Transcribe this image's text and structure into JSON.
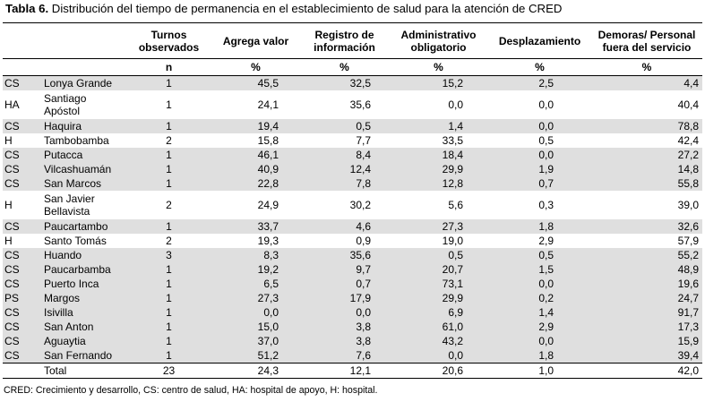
{
  "title": {
    "label": "Tabla 6.",
    "text": " Distribución del tiempo de permanencia en el establecimiento de salud para la atención de CRED"
  },
  "headers": {
    "col_turnos_1": "Turnos",
    "col_turnos_2": "observados",
    "col_agrega": "Agrega valor",
    "col_registro_1": "Registro de",
    "col_registro_2": "información",
    "col_admin_1": "Administrativo",
    "col_admin_2": "obligatorio",
    "col_despl": "Desplazamiento",
    "col_demoras_1": "Demoras/ Personal",
    "col_demoras_2": "fuera del servicio"
  },
  "units": {
    "turnos": "n",
    "agrega": "%",
    "registro": "%",
    "admin": "%",
    "despl": "%",
    "demoras": "%"
  },
  "rows": [
    {
      "type": "CS",
      "name1": "Lonya Grande",
      "name2": "",
      "n": "1",
      "agrega": "45,5",
      "registro": "32,5",
      "admin": "15,2",
      "despl": "2,5",
      "demoras": "4,4"
    },
    {
      "type": "HA",
      "name1": "Santiago",
      "name2": "Apóstol",
      "n": "1",
      "agrega": "24,1",
      "registro": "35,6",
      "admin": "0,0",
      "despl": "0,0",
      "demoras": "40,4"
    },
    {
      "type": "CS",
      "name1": "Haquira",
      "name2": "",
      "n": "1",
      "agrega": "19,4",
      "registro": "0,5",
      "admin": "1,4",
      "despl": "0,0",
      "demoras": "78,8"
    },
    {
      "type": "H",
      "name1": "Tambobamba",
      "name2": "",
      "n": "2",
      "agrega": "15,8",
      "registro": "7,7",
      "admin": "33,5",
      "despl": "0,5",
      "demoras": "42,4"
    },
    {
      "type": "CS",
      "name1": "Putacca",
      "name2": "",
      "n": "1",
      "agrega": "46,1",
      "registro": "8,4",
      "admin": "18,4",
      "despl": "0,0",
      "demoras": "27,2"
    },
    {
      "type": "CS",
      "name1": "Vilcashuamán",
      "name2": "",
      "n": "1",
      "agrega": "40,9",
      "registro": "12,4",
      "admin": "29,9",
      "despl": "1,9",
      "demoras": "14,8"
    },
    {
      "type": "CS",
      "name1": "San Marcos",
      "name2": "",
      "n": "1",
      "agrega": "22,8",
      "registro": "7,8",
      "admin": "12,8",
      "despl": "0,7",
      "demoras": "55,8"
    },
    {
      "type": "H",
      "name1": "San Javier",
      "name2": "Bellavista",
      "n": "2",
      "agrega": "24,9",
      "registro": "30,2",
      "admin": "5,6",
      "despl": "0,3",
      "demoras": "39,0"
    },
    {
      "type": "CS",
      "name1": "Paucartambo",
      "name2": "",
      "n": "1",
      "agrega": "33,7",
      "registro": "4,6",
      "admin": "27,3",
      "despl": "1,8",
      "demoras": "32,6"
    },
    {
      "type": "H",
      "name1": "Santo Tomás",
      "name2": "",
      "n": "2",
      "agrega": "19,3",
      "registro": "0,9",
      "admin": "19,0",
      "despl": "2,9",
      "demoras": "57,9"
    },
    {
      "type": "CS",
      "name1": "Huando",
      "name2": "",
      "n": "3",
      "agrega": "8,3",
      "registro": "35,6",
      "admin": "0,5",
      "despl": "0,5",
      "demoras": "55,2"
    },
    {
      "type": "CS",
      "name1": "Paucarbamba",
      "name2": "",
      "n": "1",
      "agrega": "19,2",
      "registro": "9,7",
      "admin": "20,7",
      "despl": "1,5",
      "demoras": "48,9"
    },
    {
      "type": "CS",
      "name1": "Puerto Inca",
      "name2": "",
      "n": "1",
      "agrega": "6,5",
      "registro": "0,7",
      "admin": "73,1",
      "despl": "0,0",
      "demoras": "19,6"
    },
    {
      "type": "PS",
      "name1": "Margos",
      "name2": "",
      "n": "1",
      "agrega": "27,3",
      "registro": "17,9",
      "admin": "29,9",
      "despl": "0,2",
      "demoras": "24,7"
    },
    {
      "type": "CS",
      "name1": "Isivilla",
      "name2": "",
      "n": "1",
      "agrega": "0,0",
      "registro": "0,0",
      "admin": "6,9",
      "despl": "1,4",
      "demoras": "91,7"
    },
    {
      "type": "CS",
      "name1": "San Anton",
      "name2": "",
      "n": "1",
      "agrega": "15,0",
      "registro": "3,8",
      "admin": "61,0",
      "despl": "2,9",
      "demoras": "17,3"
    },
    {
      "type": "CS",
      "name1": "Aguaytia",
      "name2": "",
      "n": "1",
      "agrega": "37,0",
      "registro": "3,8",
      "admin": "43,2",
      "despl": "0,0",
      "demoras": "15,9"
    },
    {
      "type": "CS",
      "name1": "San Fernando",
      "name2": "",
      "n": "1",
      "agrega": "51,2",
      "registro": "7,6",
      "admin": "0,0",
      "despl": "1,8",
      "demoras": "39,4"
    }
  ],
  "total": {
    "label": "Total",
    "n": "23",
    "agrega": "24,3",
    "registro": "12,1",
    "admin": "20,6",
    "despl": "1,0",
    "demoras": "42,0"
  },
  "footnote": "CRED: Crecimiento y desarrollo, CS: centro de salud, HA: hospital de apoyo, H: hospital.",
  "colors": {
    "shade": "#dfdfdf",
    "text": "#000000"
  }
}
